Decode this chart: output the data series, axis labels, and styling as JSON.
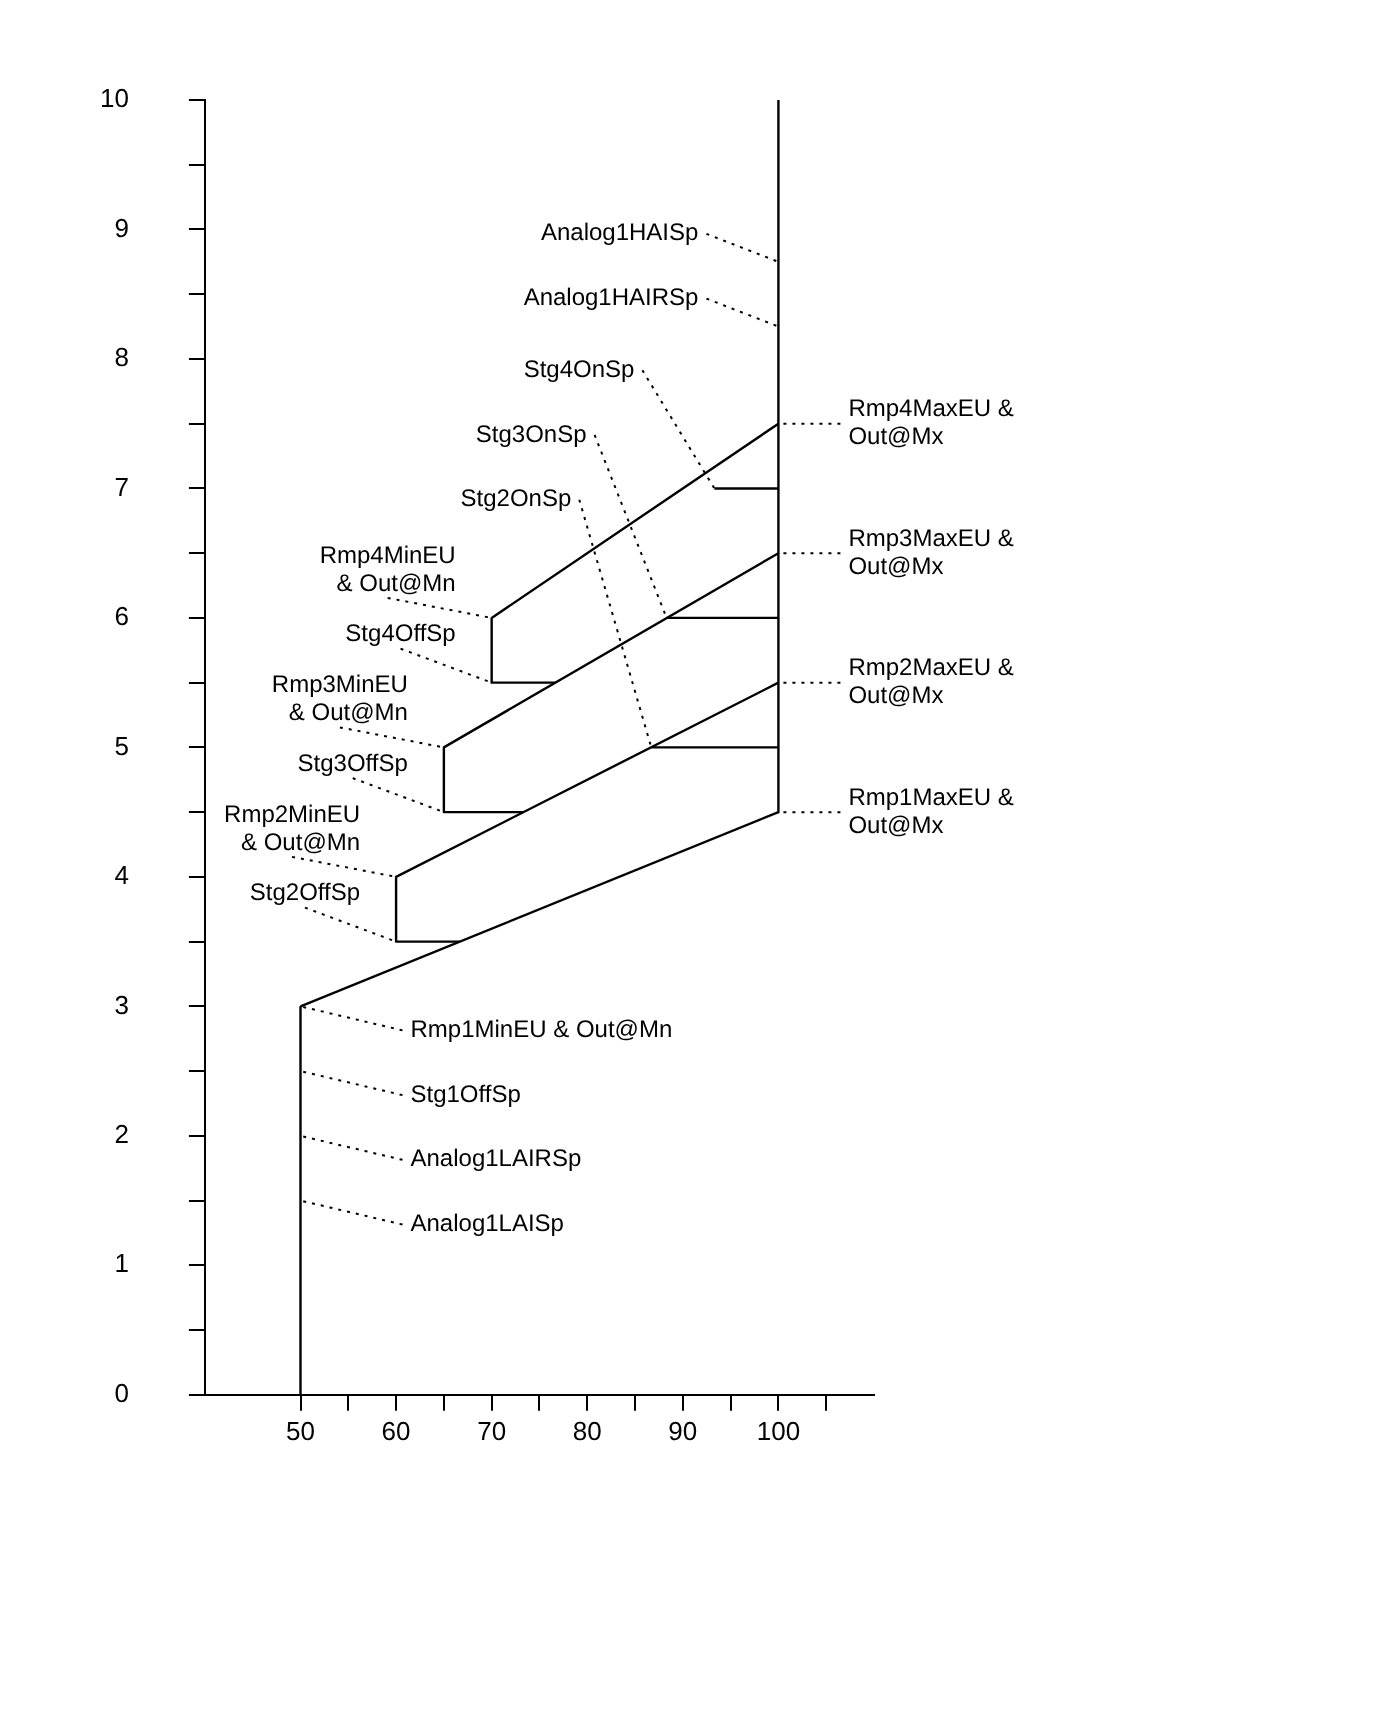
{
  "chart_data": {
    "type": "line",
    "xlim": [
      40,
      110
    ],
    "ylim": [
      0,
      10
    ],
    "xticks": [
      50,
      {
        "value": 55,
        "label": null
      },
      60,
      {
        "value": 65,
        "label": null
      },
      70,
      {
        "value": 75,
        "label": null
      },
      80,
      {
        "value": 85,
        "label": null
      },
      90,
      {
        "value": 95,
        "label": null
      },
      100,
      {
        "value": 105,
        "label": null
      }
    ],
    "yticks": [
      0,
      {
        "value": 0.5,
        "label": null
      },
      1,
      {
        "value": 1.5,
        "label": null
      },
      2,
      {
        "value": 2.5,
        "label": null
      },
      3,
      {
        "value": 3.5,
        "label": null
      },
      4,
      {
        "value": 4.5,
        "label": null
      },
      5,
      {
        "value": 5.5,
        "label": null
      },
      6,
      {
        "value": 6.5,
        "label": null
      },
      7,
      {
        "value": 7.5,
        "label": null
      },
      8,
      {
        "value": 8.5,
        "label": null
      },
      9,
      {
        "value": 9.5,
        "label": null
      },
      10
    ],
    "grid": false,
    "legend": false,
    "marker": "none",
    "line_style": "solid",
    "series": [
      {
        "color": "#000000",
        "x": [
          50,
          50
        ],
        "values": [
          0,
          3
        ]
      },
      {
        "color": "#000000",
        "x": [
          50,
          100
        ],
        "values": [
          3,
          4.5
        ]
      },
      {
        "color": "#000000",
        "x": [
          66.7,
          60,
          60,
          100
        ],
        "values": [
          3.5,
          3.5,
          4,
          5.5
        ]
      },
      {
        "color": "#000000",
        "x": [
          73.3,
          65,
          65,
          100
        ],
        "values": [
          4.5,
          4.5,
          5,
          6.5
        ]
      },
      {
        "color": "#000000",
        "x": [
          76.7,
          70,
          70,
          100
        ],
        "values": [
          5.5,
          5.5,
          6,
          7.5
        ]
      },
      {
        "color": "#000000",
        "x": [
          100,
          100
        ],
        "values": [
          10,
          4.5
        ]
      },
      {
        "color": "#000000",
        "x": [
          100,
          93.3
        ],
        "values": [
          7,
          7
        ]
      },
      {
        "color": "#000000",
        "x": [
          100,
          88.3
        ],
        "values": [
          6,
          6
        ]
      },
      {
        "color": "#000000",
        "x": [
          100,
          86.7
        ],
        "values": [
          5,
          5
        ]
      }
    ],
    "annotations": [
      {
        "text": "Analog1HAISp",
        "x": 100,
        "y": 8.75
      },
      {
        "text": "Analog1HAIRSp",
        "x": 100,
        "y": 8.25
      },
      {
        "text": "Rmp4MaxEU & Out@Mx",
        "x": 100,
        "y": 7.5
      },
      {
        "text": "Rmp3MaxEU & Out@Mx",
        "x": 100,
        "y": 6.5
      },
      {
        "text": "Rmp2MaxEU & Out@Mx",
        "x": 100,
        "y": 5.5
      },
      {
        "text": "Rmp1MaxEU & Out@Mx",
        "x": 100,
        "y": 4.5
      },
      {
        "text": "Stg4OnSp",
        "x": 93.3,
        "y": 7
      },
      {
        "text": "Stg3OnSp",
        "x": 88.3,
        "y": 6
      },
      {
        "text": "Stg2OnSp",
        "x": 86.7,
        "y": 5
      },
      {
        "text": "Rmp4MinEU & Out@Mn",
        "x": 70,
        "y": 6
      },
      {
        "text": "Stg4OffSp",
        "x": 70,
        "y": 5.5
      },
      {
        "text": "Rmp3MinEU & Out@Mn",
        "x": 65,
        "y": 5
      },
      {
        "text": "Stg3OffSp",
        "x": 65,
        "y": 4.5
      },
      {
        "text": "Rmp2MinEU & Out@Mn",
        "x": 60,
        "y": 4
      },
      {
        "text": "Stg2OffSp",
        "x": 60,
        "y": 3.5
      },
      {
        "text": "Rmp1MinEU & Out@Mn",
        "x": 50,
        "y": 3
      },
      {
        "text": "Stg1OffSp",
        "x": 50,
        "y": 2.5
      },
      {
        "text": "Analog1LAIRSp",
        "x": 50,
        "y": 2
      },
      {
        "text": "Analog1LAISp",
        "x": 50,
        "y": 1.5
      }
    ]
  }
}
